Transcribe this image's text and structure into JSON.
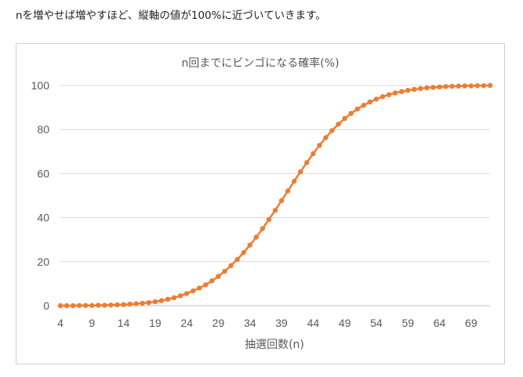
{
  "intro_text": "nを増やせば増やすほど、縦軸の値が100%に近づいていきます。",
  "colors": {
    "series": "#ED7D31",
    "grid": "#D9D9D9",
    "text": "#595959"
  },
  "chart_data": {
    "type": "line",
    "title": "n回までにビンゴになる確率(%)",
    "xlabel": "抽選回数(n)",
    "ylabel": "",
    "xlim": [
      4,
      72
    ],
    "ylim": [
      0,
      100
    ],
    "y_ticks": [
      0,
      20,
      40,
      60,
      80,
      100
    ],
    "x_ticks": [
      4,
      9,
      14,
      19,
      24,
      29,
      34,
      39,
      44,
      49,
      54,
      59,
      64,
      69
    ],
    "grid": true,
    "legend": "none",
    "series": [
      {
        "x": [
          4,
          5,
          6,
          7,
          8,
          9,
          10,
          11,
          12,
          13,
          14,
          15,
          16,
          17,
          18,
          19,
          20,
          21,
          22,
          23,
          24,
          25,
          26,
          27,
          28,
          29,
          30,
          31,
          32,
          33,
          34,
          35,
          36,
          37,
          38,
          39,
          40,
          41,
          42,
          43,
          44,
          45,
          46,
          47,
          48,
          49,
          50,
          51,
          52,
          53,
          54,
          55,
          56,
          57,
          58,
          59,
          60,
          61,
          62,
          63,
          64,
          65,
          66,
          67,
          68,
          69,
          70,
          71,
          72
        ],
        "values": [
          0,
          0,
          0,
          0.1,
          0.1,
          0.1,
          0.2,
          0.2,
          0.3,
          0.4,
          0.5,
          0.7,
          0.9,
          1.1,
          1.4,
          1.8,
          2.3,
          2.9,
          3.6,
          4.5,
          5.5,
          6.7,
          8,
          9.5,
          11.3,
          13.3,
          15.6,
          18.2,
          21,
          24.1,
          27.5,
          31.1,
          35,
          39.1,
          43.3,
          47.7,
          52.1,
          56.5,
          60.8,
          65,
          69,
          72.8,
          76.3,
          79.5,
          82.4,
          85,
          87.3,
          89.3,
          91,
          92.5,
          93.8,
          94.9,
          95.8,
          96.6,
          97.2,
          97.8,
          98.2,
          98.6,
          98.9,
          99.1,
          99.3,
          99.5,
          99.6,
          99.7,
          99.8,
          99.8,
          99.9,
          99.9,
          100
        ]
      }
    ]
  }
}
